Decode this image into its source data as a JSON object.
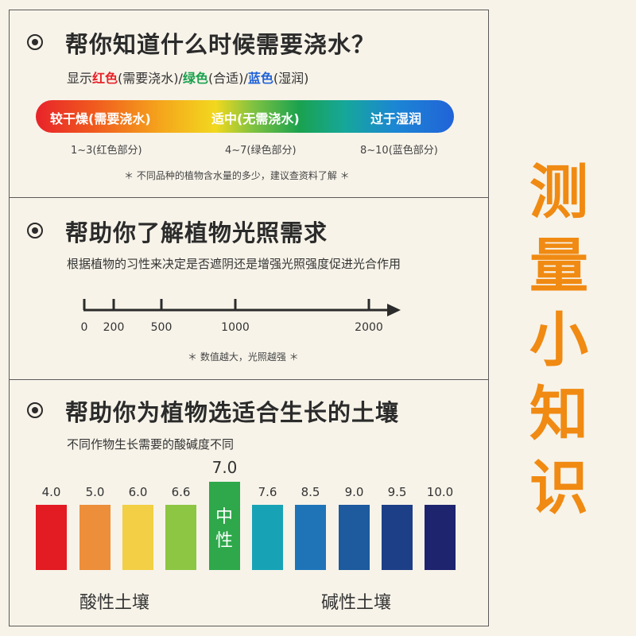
{
  "section_water": {
    "title": "帮你知道什么时候需要浇水？",
    "subtitle_parts": {
      "prefix": "显示",
      "red": "红色",
      "red_note": "(需要浇水)/",
      "green": "绿色",
      "green_note": "(合适)/",
      "blue": "蓝色",
      "blue_note": "(湿润)"
    },
    "bar_labels": [
      "较干燥(需要浇水)",
      "适中(无需浇水)",
      "过于湿润"
    ],
    "ranges": [
      "1~3(红色部分)",
      "4~7(绿色部分)",
      "8~10(蓝色部分)"
    ],
    "note": "＊ 不同品种的植物含水量的多少，建议查资料了解 ＊",
    "colors": {
      "red": "#e8232a",
      "green": "#1aa24f",
      "blue": "#2163d8"
    }
  },
  "section_light": {
    "title": "帮助你了解植物光照需求",
    "subtitle": "根据植物的习性来决定是否遮阴还是增强光照强度促进光合作用",
    "ticks": [
      "0",
      "200",
      "500",
      "1000",
      "2000"
    ],
    "note": "＊ 数值越大，光照越强 ＊"
  },
  "section_soil": {
    "title": "帮助你为植物选适合生长的土壤",
    "subtitle": "不同作物生长需要的酸碱度不同",
    "ph_values": [
      {
        "value": "4.0",
        "color": "#e31b23"
      },
      {
        "value": "5.0",
        "color": "#ec8e3a"
      },
      {
        "value": "6.0",
        "color": "#f2cf44"
      },
      {
        "value": "6.6",
        "color": "#8dc642"
      },
      {
        "value": "7.0",
        "color": "#2ea84a",
        "label": "中性"
      },
      {
        "value": "7.6",
        "color": "#17a3b5"
      },
      {
        "value": "8.5",
        "color": "#1f74b8"
      },
      {
        "value": "9.0",
        "color": "#1d5a9e"
      },
      {
        "value": "9.5",
        "color": "#1d3f87"
      },
      {
        "value": "10.0",
        "color": "#1e246e"
      }
    ],
    "acid_label": "酸性土壤",
    "alkaline_label": "碱性土壤"
  },
  "side_title": [
    "测",
    "量",
    "小",
    "知",
    "识"
  ]
}
